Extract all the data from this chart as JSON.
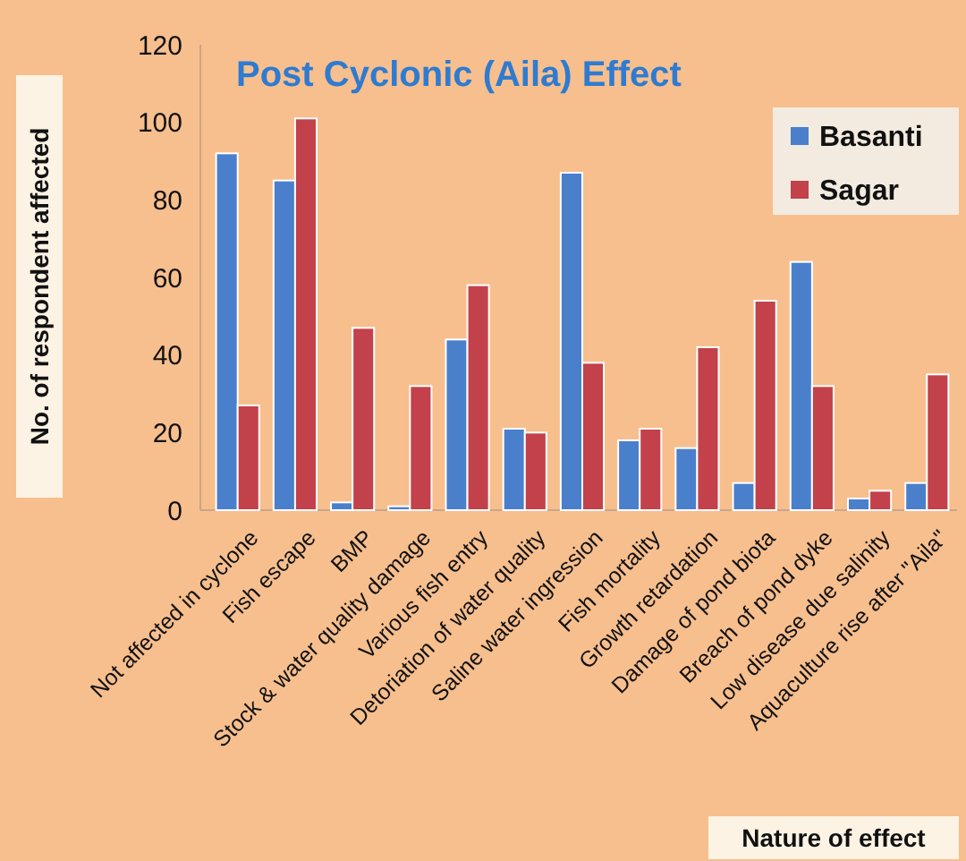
{
  "chart_data": {
    "type": "bar",
    "title": "Post Cyclonic (Aila) Effect",
    "xlabel": "Nature of effect",
    "ylabel": "No. of respondent affected",
    "categories": [
      "Not affected in cyclone",
      "Fish escape",
      "BMP",
      "Stock & water quality damage",
      "Various fish entry",
      "Detoriation of water quality",
      "Saline water ingression",
      "Fish mortality",
      "Growth retardation",
      "Damage of pond biota",
      "Breach of pond dyke",
      "Low disease due salinity",
      "Aquaculture  rise after \"Aila\""
    ],
    "series": [
      {
        "name": "Basanti",
        "color": "#4a7fcb",
        "values": [
          92,
          85,
          2,
          1,
          44,
          21,
          87,
          18,
          16,
          7,
          64,
          3,
          7
        ]
      },
      {
        "name": "Sagar",
        "color": "#c2414b",
        "values": [
          27,
          101,
          47,
          32,
          58,
          20,
          38,
          21,
          42,
          54,
          32,
          5,
          35
        ]
      }
    ],
    "ylim": [
      0,
      120
    ],
    "yticks": [
      0,
      20,
      40,
      60,
      80,
      100,
      120
    ],
    "grid": false,
    "legend": "top right"
  }
}
